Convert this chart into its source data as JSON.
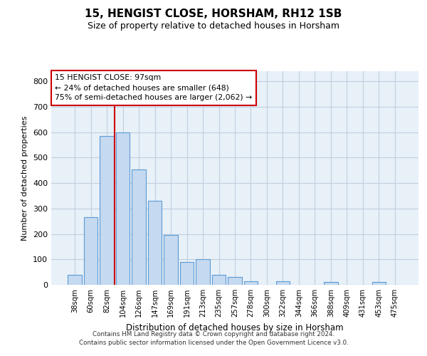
{
  "title1": "15, HENGIST CLOSE, HORSHAM, RH12 1SB",
  "title2": "Size of property relative to detached houses in Horsham",
  "xlabel": "Distribution of detached houses by size in Horsham",
  "ylabel": "Number of detached properties",
  "annotation_title": "15 HENGIST CLOSE: 97sqm",
  "annotation_line1": "← 24% of detached houses are smaller (648)",
  "annotation_line2": "75% of semi-detached houses are larger (2,062) →",
  "footer1": "Contains HM Land Registry data © Crown copyright and database right 2024.",
  "footer2": "Contains public sector information licensed under the Open Government Licence v3.0.",
  "bar_color": "#c5d9f0",
  "bar_edge_color": "#5b9bd5",
  "grid_color": "#c0cfe0",
  "vline_color": "#cc0000",
  "annotation_box_edgecolor": "#cc0000",
  "bg_color": "#ffffff",
  "plot_bg_color": "#e8f0f8",
  "categories": [
    "38sqm",
    "60sqm",
    "82sqm",
    "104sqm",
    "126sqm",
    "147sqm",
    "169sqm",
    "191sqm",
    "213sqm",
    "235sqm",
    "257sqm",
    "278sqm",
    "300sqm",
    "322sqm",
    "344sqm",
    "366sqm",
    "388sqm",
    "409sqm",
    "431sqm",
    "453sqm",
    "475sqm"
  ],
  "values": [
    38,
    265,
    585,
    600,
    455,
    330,
    195,
    90,
    100,
    38,
    32,
    15,
    0,
    15,
    0,
    0,
    10,
    0,
    0,
    10,
    0
  ],
  "vline_position": 3.0,
  "ylim": [
    0,
    840
  ],
  "yticks": [
    0,
    100,
    200,
    300,
    400,
    500,
    600,
    700,
    800
  ]
}
